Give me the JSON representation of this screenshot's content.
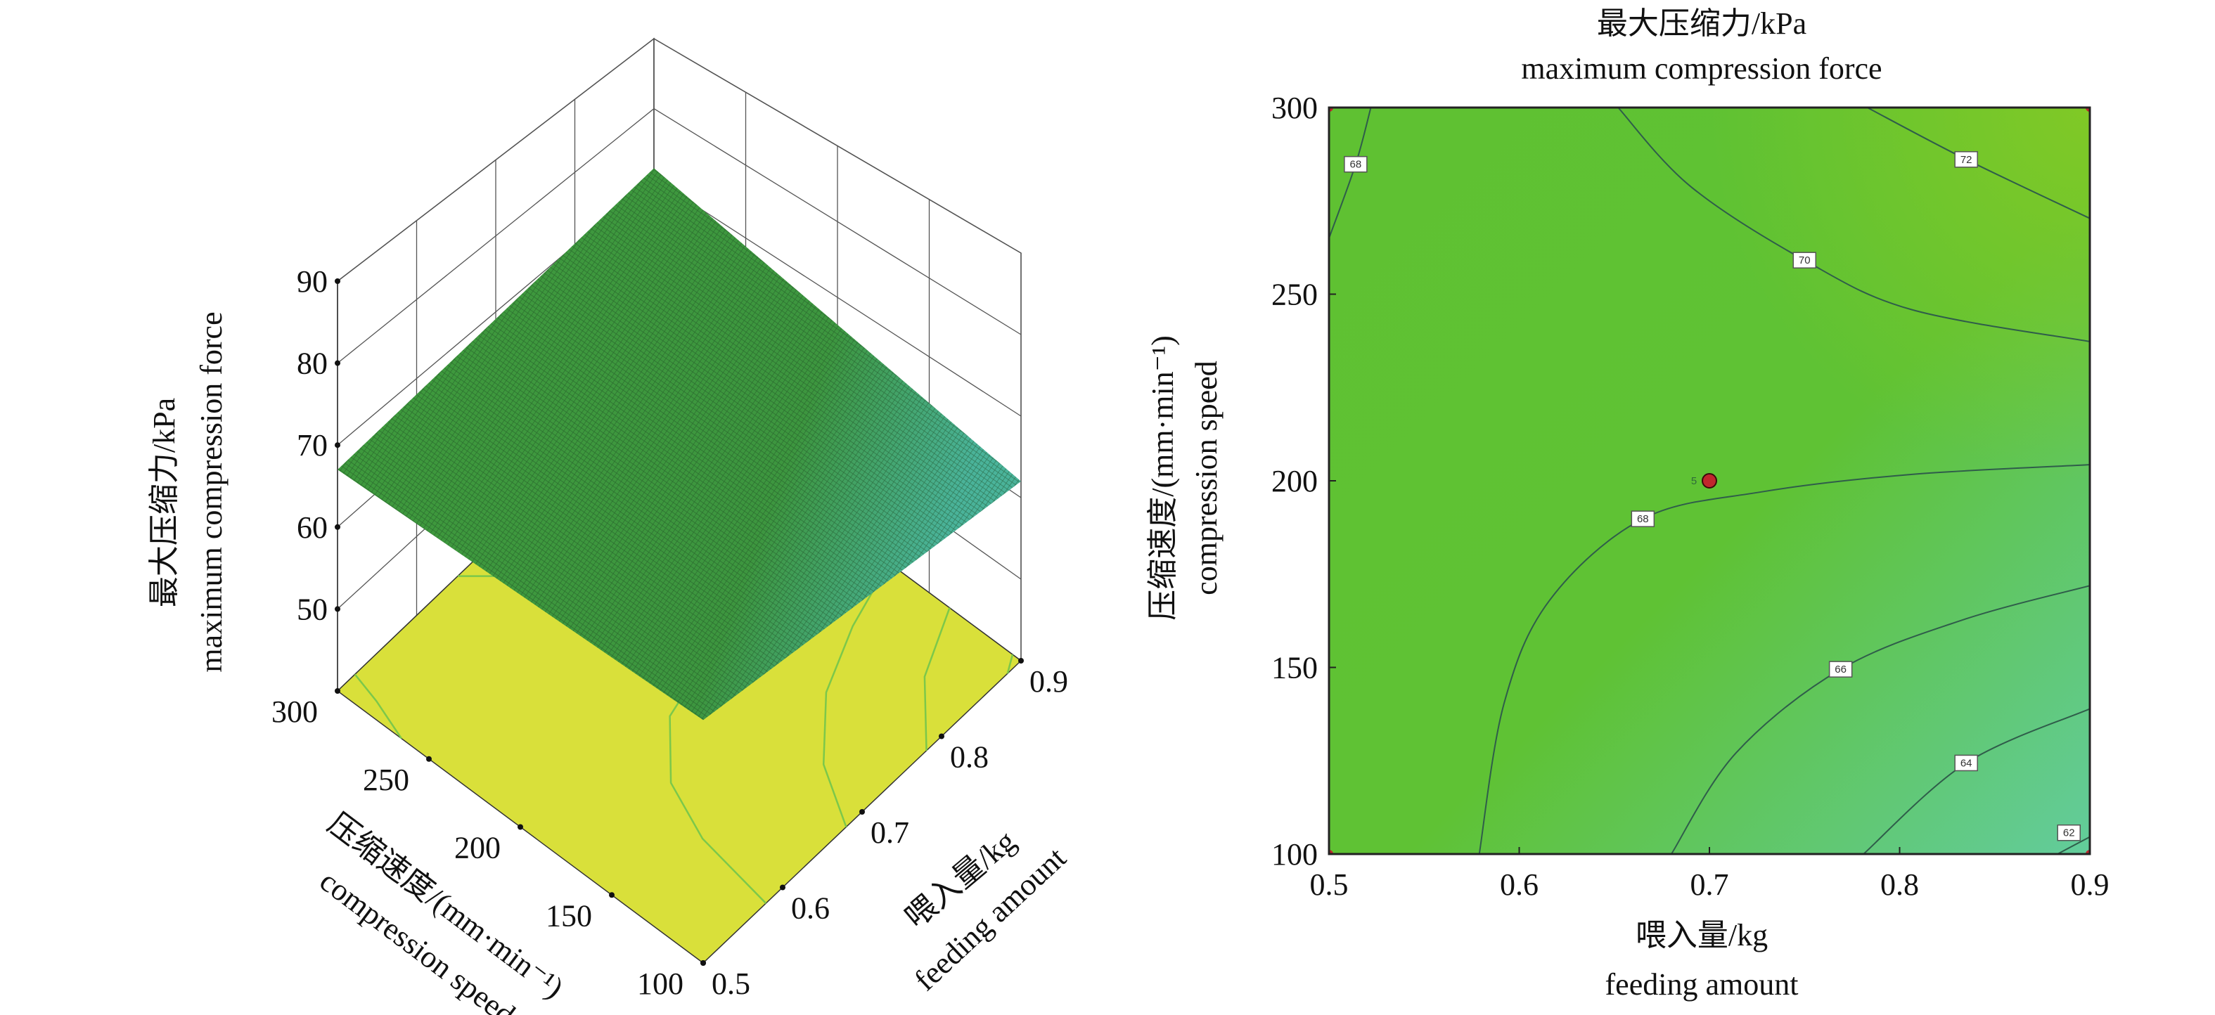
{
  "chart_data": [
    {
      "type": "surface3d",
      "zlabel_cn": "最大压缩力/kPa",
      "zlabel_en": "maximum compression force",
      "xlabel_cn": "喂入量/kg",
      "xlabel_en": "feeding amount",
      "ylabel_cn": "压缩速度/(mm·min⁻¹)",
      "ylabel_en": "compression speed",
      "x_ticks": [
        "0.5",
        "0.6",
        "0.7",
        "0.8",
        "0.9"
      ],
      "y_ticks": [
        "100",
        "150",
        "200",
        "250",
        "300"
      ],
      "z_ticks": [
        "50",
        "60",
        "70",
        "80",
        "90"
      ],
      "xlim": [
        0.5,
        0.9
      ],
      "ylim": [
        100,
        300
      ],
      "zlim": [
        40,
        90
      ],
      "surface_corners": [
        {
          "x": 0.5,
          "y": 300,
          "z": 67
        },
        {
          "x": 0.9,
          "y": 300,
          "z": 71.5
        },
        {
          "x": 0.9,
          "y": 100,
          "z": 62
        },
        {
          "x": 0.5,
          "y": 100,
          "z": 67
        }
      ],
      "colors": {
        "surface": "#3f9a3e",
        "surface_low": "#4cb89a",
        "floor": "#d9e03a",
        "floor_contour": "#7cc84a"
      }
    },
    {
      "type": "contour",
      "title_cn": "最大压缩力/kPa",
      "title_en": "maximum compression force",
      "xlabel_cn": "喂入量/kg",
      "xlabel_en": "feeding amount",
      "ylabel_cn": "压缩速度/(mm·min⁻¹)",
      "ylabel_en": "compression speed",
      "x_ticks": [
        "0.5",
        "0.6",
        "0.7",
        "0.8",
        "0.9"
      ],
      "y_ticks": [
        "100",
        "150",
        "200",
        "250",
        "300"
      ],
      "xlim": [
        0.5,
        0.9
      ],
      "ylim": [
        100,
        300
      ],
      "contours": [
        {
          "level": "68",
          "points": [
            [
              0.522,
              300
            ],
            [
              0.514,
              284.8
            ],
            [
              0.5,
              265
            ]
          ],
          "label_at": [
            0.514,
            284.8
          ]
        },
        {
          "level": "70",
          "points": [
            [
              0.652,
              300
            ],
            [
              0.69,
              278.9
            ],
            [
              0.75,
              259.1
            ],
            [
              0.806,
              245.9
            ],
            [
              0.9,
              237.3
            ]
          ],
          "label_at": [
            0.75,
            259.1
          ]
        },
        {
          "level": "72",
          "points": [
            [
              0.783,
              300
            ],
            [
              0.835,
              286.1
            ],
            [
              0.9,
              270.3
            ]
          ],
          "label_at": [
            0.835,
            286.1
          ]
        },
        {
          "level": "68",
          "points": [
            [
              0.579,
              100
            ],
            [
              0.592,
              140.3
            ],
            [
              0.616,
              168
            ],
            [
              0.665,
              189.8
            ],
            [
              0.727,
              197
            ],
            [
              0.806,
              201.7
            ],
            [
              0.9,
              204.3
            ]
          ],
          "label_at": [
            0.665,
            189.8
          ]
        },
        {
          "level": "66",
          "points": [
            [
              0.68,
              100
            ],
            [
              0.714,
              127.1
            ],
            [
              0.769,
              149.5
            ],
            [
              0.833,
              162.7
            ],
            [
              0.9,
              171.9
            ]
          ],
          "label_at": [
            0.769,
            149.5
          ]
        },
        {
          "level": "64",
          "points": [
            [
              0.781,
              100
            ],
            [
              0.835,
              124.4
            ],
            [
              0.9,
              138.9
            ]
          ],
          "label_at": [
            0.835,
            124.4
          ]
        },
        {
          "level": "62",
          "points": [
            [
              0.883,
              100
            ],
            [
              0.9,
              104.6
            ]
          ],
          "label_at": [
            0.889,
            105.7
          ]
        }
      ],
      "design_point": {
        "x": 0.7,
        "y": 200,
        "label": "5"
      },
      "corner_points": [
        [
          0.5,
          100
        ],
        [
          0.5,
          300
        ],
        [
          0.9,
          100
        ],
        [
          0.9,
          300
        ]
      ],
      "colors": {
        "base": "#5fc132",
        "high": "#7ec826",
        "low": "#62cc9c",
        "line": "#2f5d4a",
        "point": "#c0272d"
      }
    }
  ]
}
